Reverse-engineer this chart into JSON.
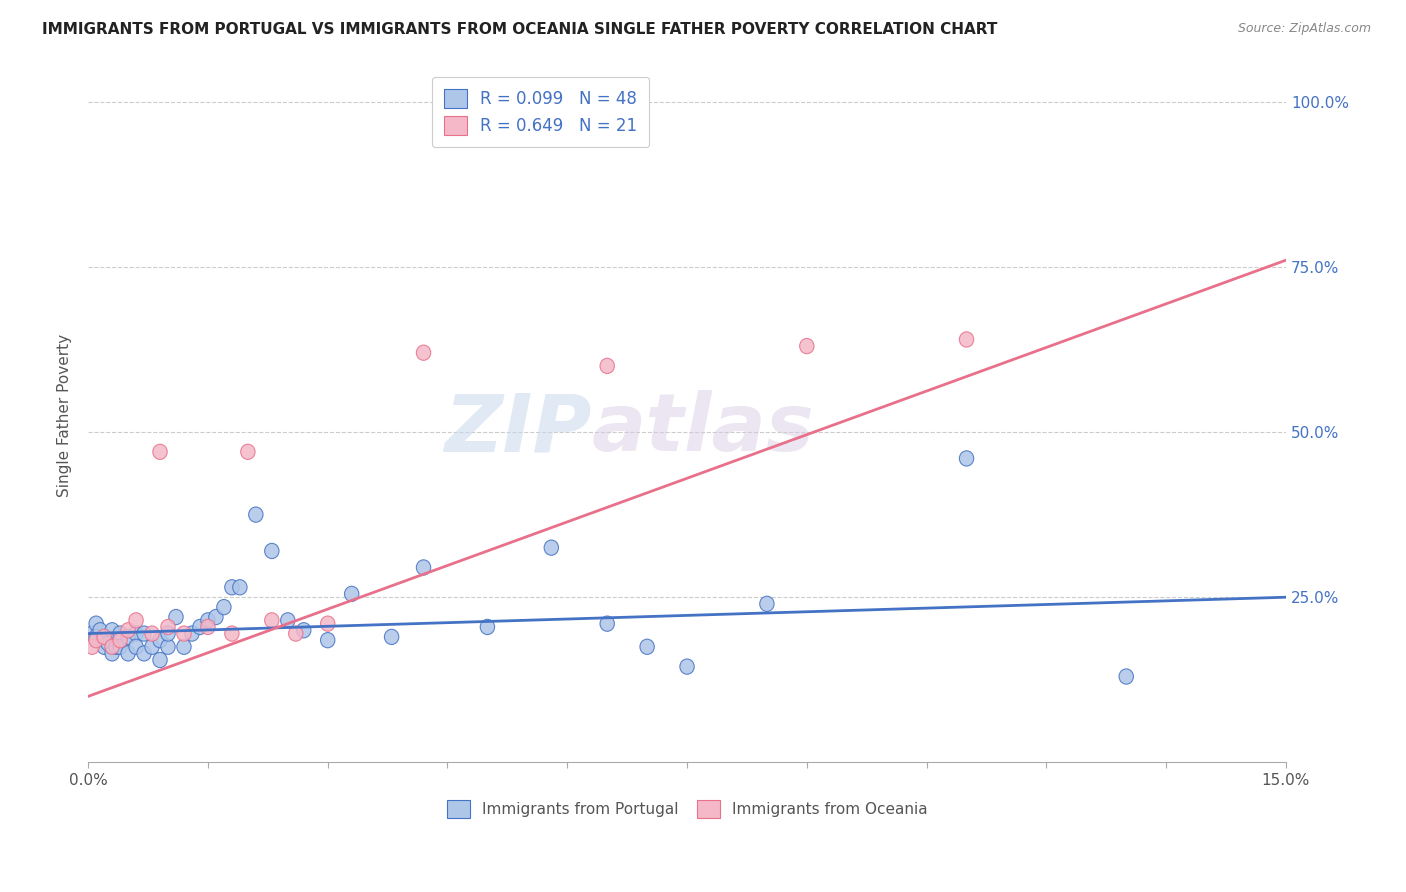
{
  "title": "IMMIGRANTS FROM PORTUGAL VS IMMIGRANTS FROM OCEANIA SINGLE FATHER POVERTY CORRELATION CHART",
  "source": "Source: ZipAtlas.com",
  "ylabel": "Single Father Poverty",
  "xlim": [
    0.0,
    0.15
  ],
  "ylim": [
    0.0,
    1.05
  ],
  "portugal_color": "#aec6e8",
  "oceania_color": "#f4b8c8",
  "portugal_line_color": "#4472c4",
  "oceania_line_color": "#e8708a",
  "r_portugal": 0.099,
  "n_portugal": 48,
  "r_oceania": 0.649,
  "n_oceania": 21,
  "watermark_zip": "ZIP",
  "watermark_atlas": "atlas",
  "portugal_x": [
    0.0005,
    0.001,
    0.001,
    0.0015,
    0.002,
    0.002,
    0.0025,
    0.003,
    0.003,
    0.0035,
    0.004,
    0.004,
    0.005,
    0.005,
    0.006,
    0.006,
    0.007,
    0.007,
    0.008,
    0.009,
    0.009,
    0.01,
    0.01,
    0.011,
    0.012,
    0.013,
    0.014,
    0.015,
    0.016,
    0.017,
    0.018,
    0.019,
    0.021,
    0.023,
    0.025,
    0.027,
    0.03,
    0.033,
    0.038,
    0.042,
    0.05,
    0.058,
    0.065,
    0.07,
    0.075,
    0.085,
    0.11,
    0.13
  ],
  "portugal_y": [
    0.195,
    0.21,
    0.19,
    0.2,
    0.185,
    0.175,
    0.18,
    0.165,
    0.2,
    0.175,
    0.195,
    0.175,
    0.165,
    0.19,
    0.195,
    0.175,
    0.165,
    0.195,
    0.175,
    0.185,
    0.155,
    0.175,
    0.195,
    0.22,
    0.175,
    0.195,
    0.205,
    0.215,
    0.22,
    0.235,
    0.265,
    0.265,
    0.375,
    0.32,
    0.215,
    0.2,
    0.185,
    0.255,
    0.19,
    0.295,
    0.205,
    0.325,
    0.21,
    0.175,
    0.145,
    0.24,
    0.46,
    0.13
  ],
  "oceania_x": [
    0.0005,
    0.001,
    0.002,
    0.003,
    0.004,
    0.005,
    0.006,
    0.008,
    0.009,
    0.01,
    0.012,
    0.015,
    0.018,
    0.02,
    0.023,
    0.026,
    0.03,
    0.042,
    0.065,
    0.09,
    0.11
  ],
  "oceania_y": [
    0.175,
    0.185,
    0.19,
    0.175,
    0.185,
    0.2,
    0.215,
    0.195,
    0.47,
    0.205,
    0.195,
    0.205,
    0.195,
    0.47,
    0.215,
    0.195,
    0.21,
    0.62,
    0.6,
    0.63,
    0.64
  ],
  "portugal_line_x0": 0.0,
  "portugal_line_y0": 0.195,
  "portugal_line_x1": 0.15,
  "portugal_line_y1": 0.25,
  "oceania_line_x0": 0.0,
  "oceania_line_y0": 0.1,
  "oceania_line_x1": 0.15,
  "oceania_line_y1": 0.76
}
